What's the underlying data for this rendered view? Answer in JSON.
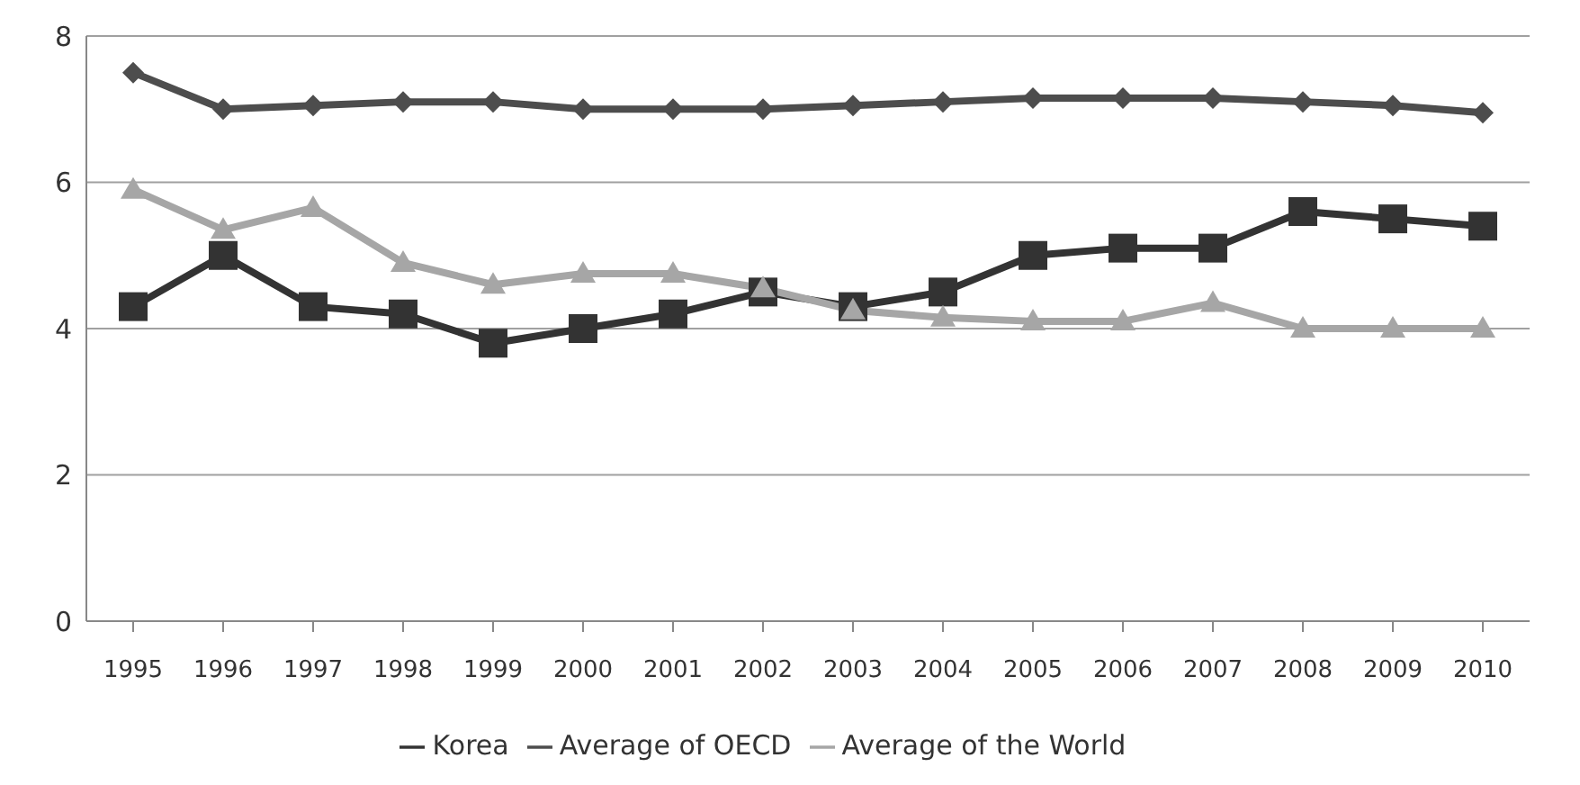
{
  "chart_data": {
    "type": "line",
    "categories": [
      "1995",
      "1996",
      "1997",
      "1998",
      "1999",
      "2000",
      "2001",
      "2002",
      "2003",
      "2004",
      "2005",
      "2006",
      "2007",
      "2008",
      "2009",
      "2010"
    ],
    "series": [
      {
        "name": "Korea",
        "color": "#333333",
        "marker": "square",
        "values": [
          4.3,
          5.0,
          4.3,
          4.2,
          3.8,
          4.0,
          4.2,
          4.5,
          4.3,
          4.5,
          5.0,
          5.1,
          5.1,
          5.6,
          5.5,
          5.4
        ]
      },
      {
        "name": "Average of OECD",
        "color": "#4d4d4d",
        "marker": "diamond",
        "values": [
          7.5,
          7.0,
          7.05,
          7.1,
          7.1,
          7.0,
          7.0,
          7.0,
          7.05,
          7.1,
          7.15,
          7.15,
          7.15,
          7.1,
          7.05,
          6.95
        ]
      },
      {
        "name": "Average of the World",
        "color": "#a6a6a6",
        "marker": "triangle",
        "values": [
          5.9,
          5.35,
          5.65,
          4.9,
          4.6,
          4.75,
          4.75,
          4.55,
          4.25,
          4.15,
          4.1,
          4.1,
          4.35,
          4.0,
          4.0,
          4.0
        ]
      }
    ],
    "ylim": [
      0,
      8
    ],
    "yticks": [
      0,
      2,
      4,
      6,
      8
    ],
    "grid": "y",
    "legend": "bottom"
  }
}
